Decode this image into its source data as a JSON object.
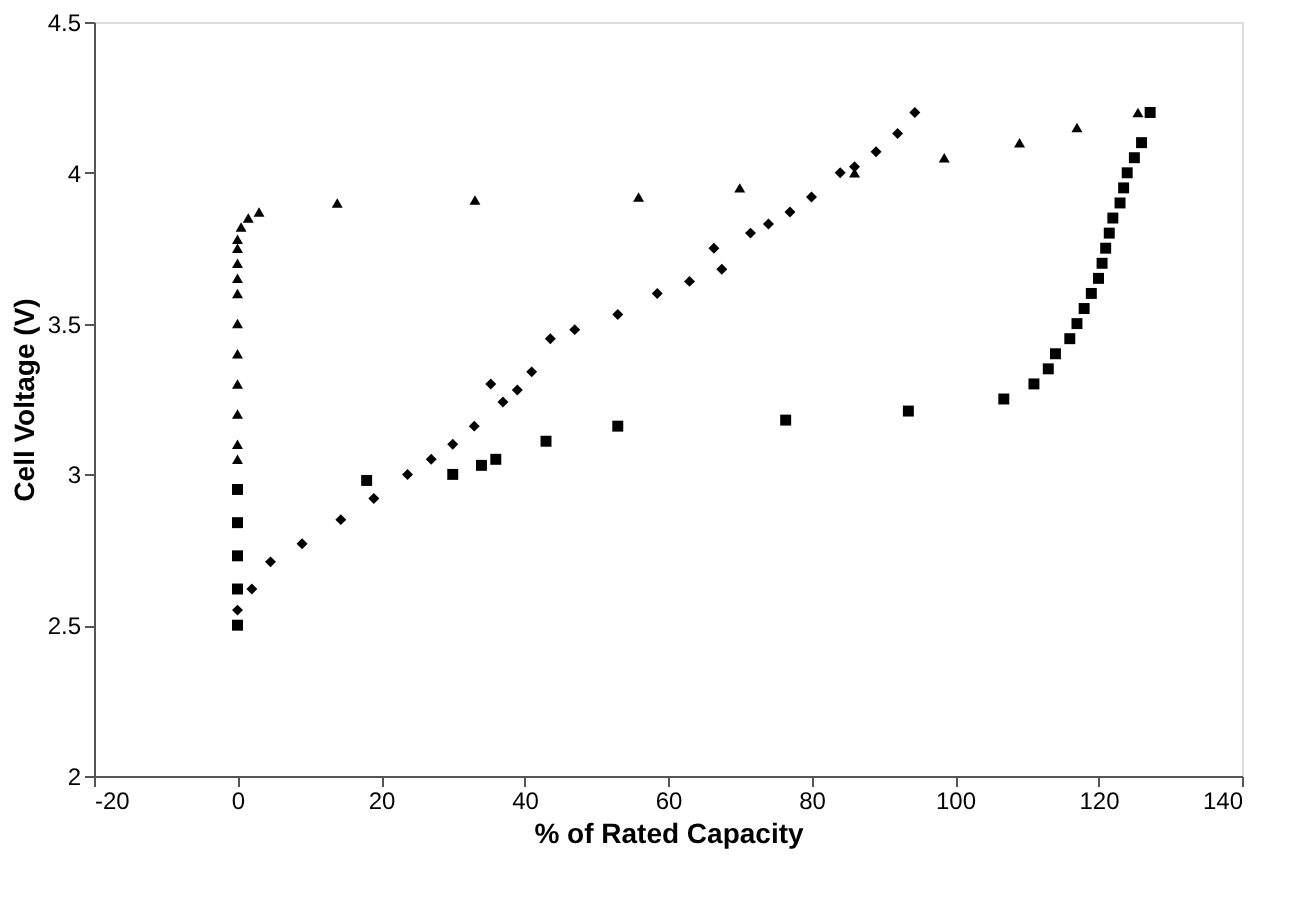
{
  "chart_data": {
    "type": "scatter",
    "xlabel": "% of Rated Capacity",
    "ylabel": "Cell Voltage (V)",
    "xlim": [
      -20,
      140
    ],
    "xticks": [
      -20,
      0,
      20,
      40,
      60,
      80,
      100,
      120,
      140
    ],
    "ylim": [
      2,
      4.5
    ],
    "yticks": [
      2,
      2.5,
      3,
      3.5,
      4,
      4.5
    ],
    "grid": false,
    "legend": false,
    "series": [
      {
        "color": "#000000",
        "marker": "diamond",
        "x": [
          0,
          2,
          4.6,
          9,
          14.4,
          19,
          23.7,
          27,
          30,
          33,
          35.3,
          37,
          39,
          41,
          43.6,
          47,
          53,
          58.5,
          63,
          66.4,
          67.5,
          71.5,
          74,
          77,
          80,
          84,
          86,
          89,
          92,
          94.4
        ],
        "values": [
          2.55,
          2.62,
          2.71,
          2.77,
          2.85,
          2.92,
          3.0,
          3.05,
          3.1,
          3.16,
          3.3,
          3.24,
          3.28,
          3.34,
          3.45,
          3.48,
          3.53,
          3.6,
          3.64,
          3.75,
          3.68,
          3.8,
          3.83,
          3.87,
          3.92,
          4.0,
          4.02,
          4.07,
          4.13,
          4.2
        ]
      },
      {
        "color": "#000000",
        "marker": "square",
        "x": [
          0,
          0,
          0,
          0,
          0,
          18,
          30,
          34,
          36,
          43,
          53,
          76.4,
          93.5,
          106.8,
          111,
          113,
          114,
          116,
          117,
          118,
          119,
          120,
          120.5,
          121,
          121.5,
          122,
          123,
          123.5,
          124,
          125,
          126,
          127.2
        ],
        "values": [
          2.5,
          2.62,
          2.73,
          2.84,
          2.95,
          2.98,
          3.0,
          3.03,
          3.05,
          3.11,
          3.16,
          3.18,
          3.21,
          3.25,
          3.3,
          3.35,
          3.4,
          3.45,
          3.5,
          3.55,
          3.6,
          3.65,
          3.7,
          3.75,
          3.8,
          3.85,
          3.9,
          3.95,
          4.0,
          4.05,
          4.1,
          4.2
        ]
      },
      {
        "color": "#000000",
        "marker": "triangle",
        "x": [
          0,
          0,
          0,
          0,
          0,
          0,
          0,
          0,
          0,
          0,
          0,
          0.5,
          1.5,
          3,
          13.9,
          33.1,
          55.9,
          70,
          86,
          98.5,
          109,
          117,
          125.5
        ],
        "values": [
          3.05,
          3.1,
          3.2,
          3.3,
          3.4,
          3.5,
          3.6,
          3.65,
          3.7,
          3.75,
          3.78,
          3.82,
          3.85,
          3.87,
          3.9,
          3.91,
          3.92,
          3.95,
          4.0,
          4.05,
          4.1,
          4.15,
          4.2
        ]
      }
    ]
  }
}
